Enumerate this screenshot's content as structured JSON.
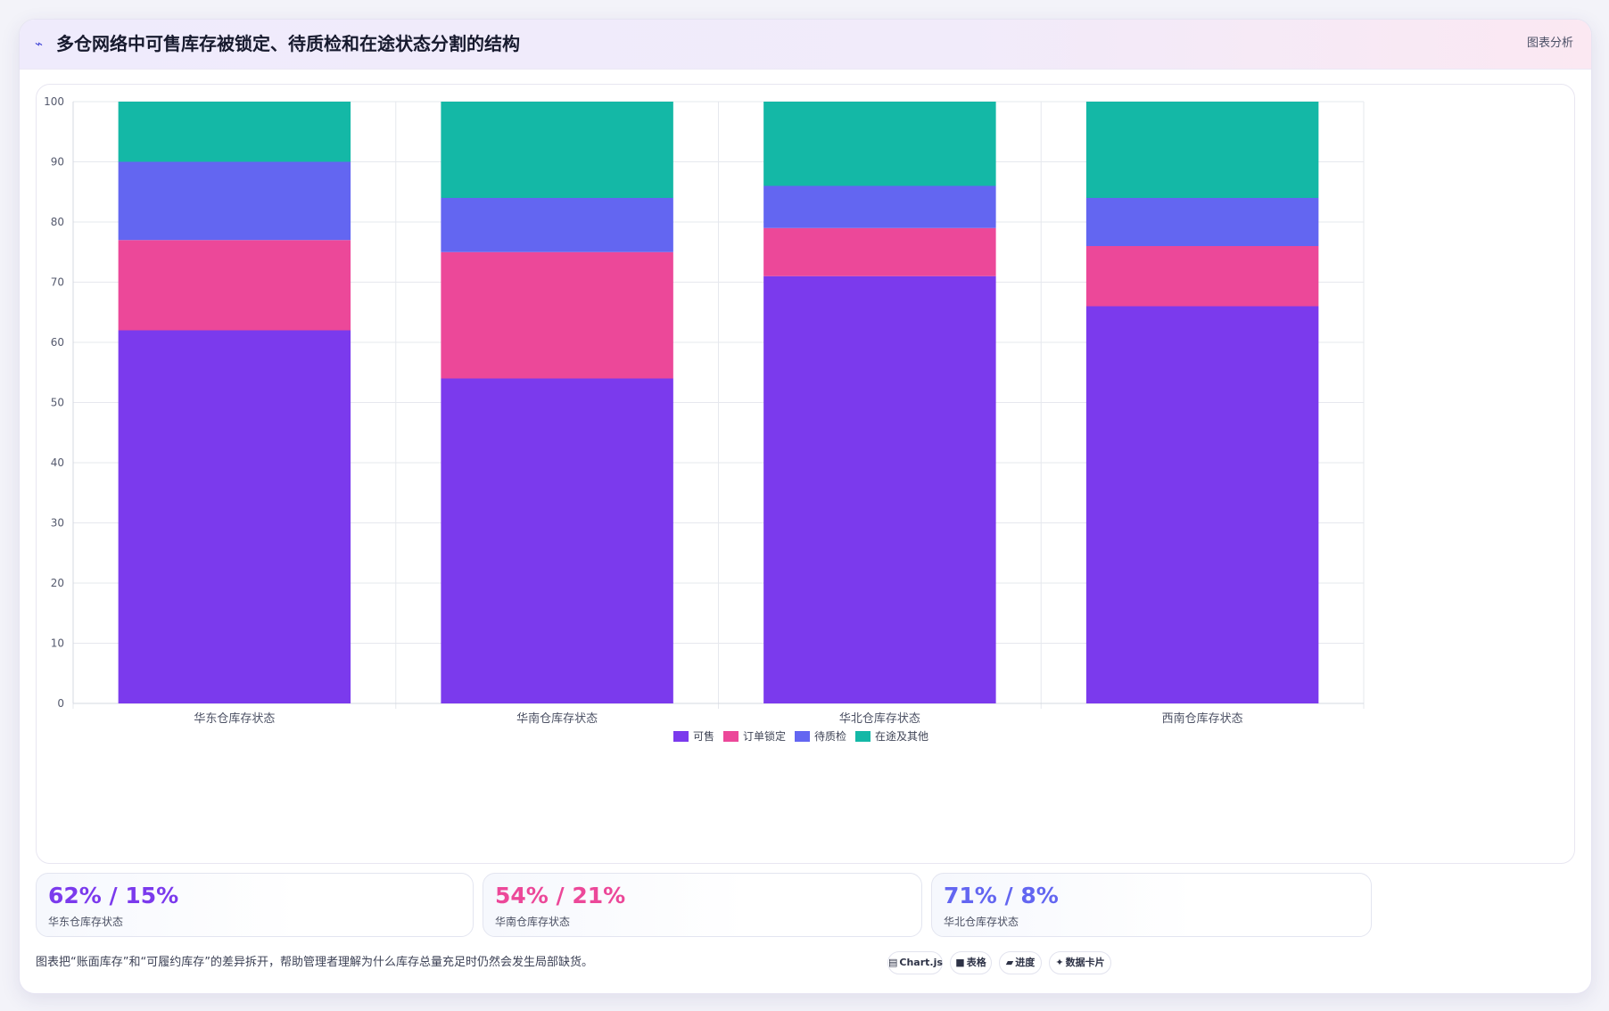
{
  "header": {
    "icon": "trend-icon",
    "title": "多仓网络中可售库存被锁定、待质检和在途状态分割的结构",
    "action_label": "图表分析"
  },
  "chart_data": {
    "type": "bar",
    "stacked": true,
    "categories": [
      "华东仓库存状态",
      "华南仓库存状态",
      "华北仓库存状态",
      "西南仓库存状态"
    ],
    "series": [
      {
        "name": "可售",
        "values": [
          62,
          54,
          71,
          66
        ],
        "color": "#7b3aed"
      },
      {
        "name": "订单锁定",
        "values": [
          15,
          21,
          8,
          10
        ],
        "color": "#ec4899"
      },
      {
        "name": "待质检",
        "values": [
          13,
          9,
          7,
          8
        ],
        "color": "#6366f1"
      },
      {
        "name": "在途及其他",
        "values": [
          10,
          16,
          14,
          16
        ],
        "color": "#14b8a6"
      }
    ],
    "ylim": [
      0,
      100
    ],
    "yticks": [
      0,
      10,
      20,
      30,
      40,
      50,
      60,
      70,
      80,
      90,
      100
    ],
    "grid": true,
    "legend_position": "bottom"
  },
  "stats": [
    {
      "value": "62% / 15%",
      "label": "华东仓库存状态",
      "color": "#7b3aed"
    },
    {
      "value": "54% / 21%",
      "label": "华南仓库存状态",
      "color": "#ec4899"
    },
    {
      "value": "71% / 8%",
      "label": "华北仓库存状态",
      "color": "#6366f1"
    }
  ],
  "footer": {
    "note": "图表把“账面库存”和“可履约库存”的差异拆开，帮助管理者理解为什么库存总量充足时仍然会发生局部缺货。",
    "chips": [
      {
        "icon": "chart-icon",
        "glyph": "▤",
        "label": "Chart.js"
      },
      {
        "icon": "table-icon",
        "glyph": "■",
        "label": "表格"
      },
      {
        "icon": "progress-icon",
        "glyph": "▰",
        "label": "进度"
      },
      {
        "icon": "sparkle-icon",
        "glyph": "✦",
        "label": "数据卡片"
      }
    ]
  }
}
